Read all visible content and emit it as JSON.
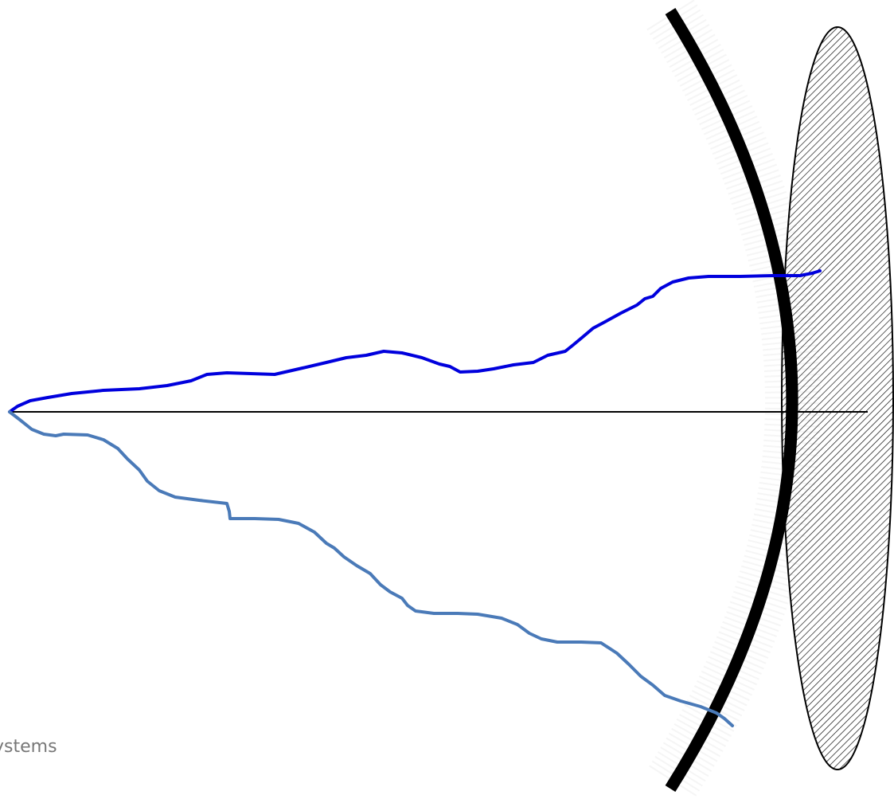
{
  "caption": "ystems",
  "colors": {
    "background": "#ffffff",
    "axis": "#000000",
    "upper_path": "#0000dd",
    "lower_path": "#4a7ab8",
    "arc": "#000000",
    "ellipse_fill": "#ffffff",
    "ellipse_hatch": "#000000",
    "caption": "#777777"
  }
}
